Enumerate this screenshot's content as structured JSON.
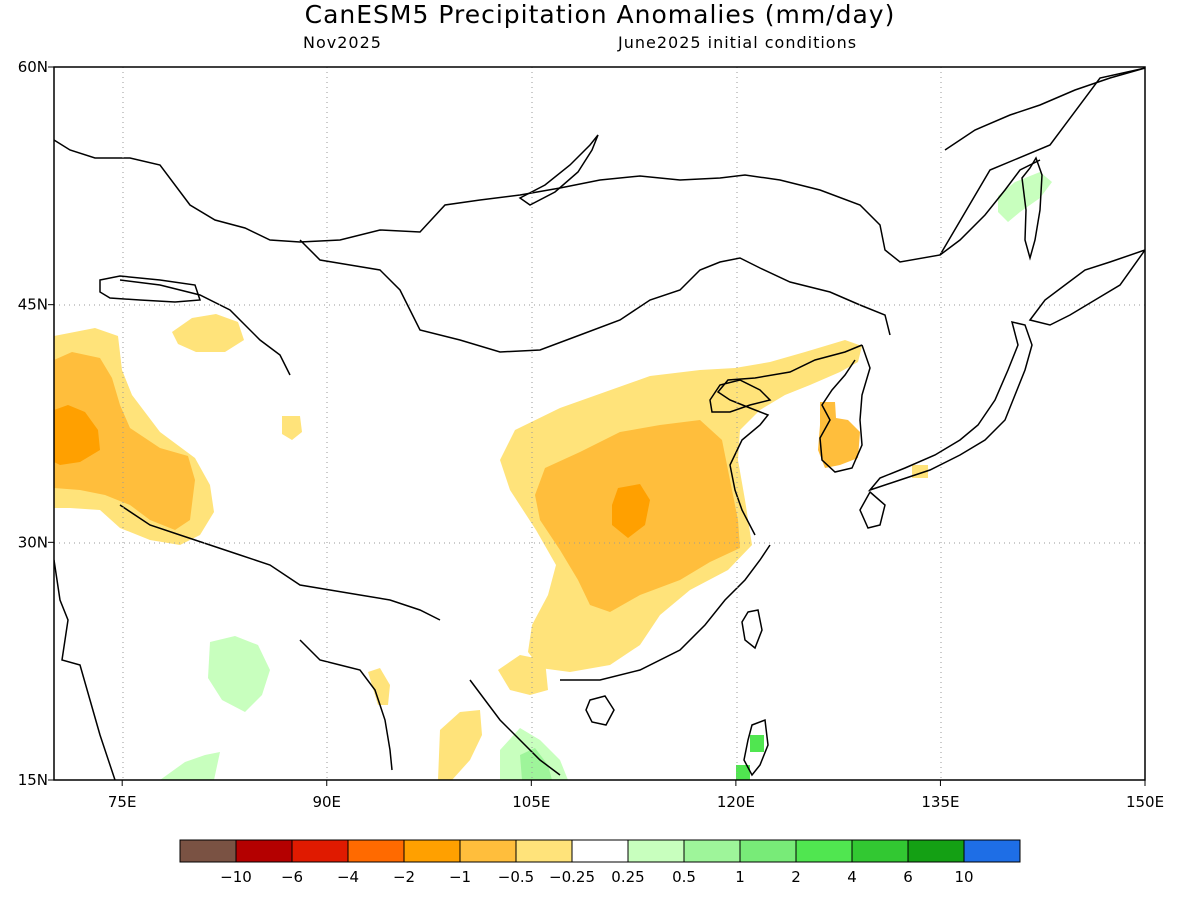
{
  "title": "CanESM5 Precipitation Anomalies (mm/day)",
  "subtitle_left": "Nov2025",
  "subtitle_right": "June2025 initial conditions",
  "axes": {
    "lat_ticks": [
      {
        "value": 60,
        "label": "60N"
      },
      {
        "value": 45,
        "label": "45N"
      },
      {
        "value": 30,
        "label": "30N"
      },
      {
        "value": 15,
        "label": "15N"
      }
    ],
    "lon_ticks": [
      {
        "value": 75,
        "label": "75E"
      },
      {
        "value": 90,
        "label": "90E"
      },
      {
        "value": 105,
        "label": "105E"
      },
      {
        "value": 120,
        "label": "120E"
      },
      {
        "value": 135,
        "label": "135E"
      },
      {
        "value": 150,
        "label": "150E"
      }
    ],
    "lat_range": [
      15,
      60
    ],
    "lon_range": [
      70,
      150
    ],
    "grid": true
  },
  "colorbar": {
    "colors": [
      "#7a5243",
      "#b40000",
      "#e01a00",
      "#ff6a00",
      "#ffa000",
      "#ffbe3c",
      "#ffe37a",
      "#ffffff",
      "#c8ffbe",
      "#9ef59a",
      "#78eb78",
      "#50e650",
      "#32c832",
      "#14a014",
      "#1e6ee6"
    ],
    "labels": [
      "−10",
      "−6",
      "−4",
      "−2",
      "−1",
      "−0.5",
      "−0.25",
      "0.25",
      "0.5",
      "1",
      "2",
      "4",
      "6",
      "10"
    ]
  }
}
